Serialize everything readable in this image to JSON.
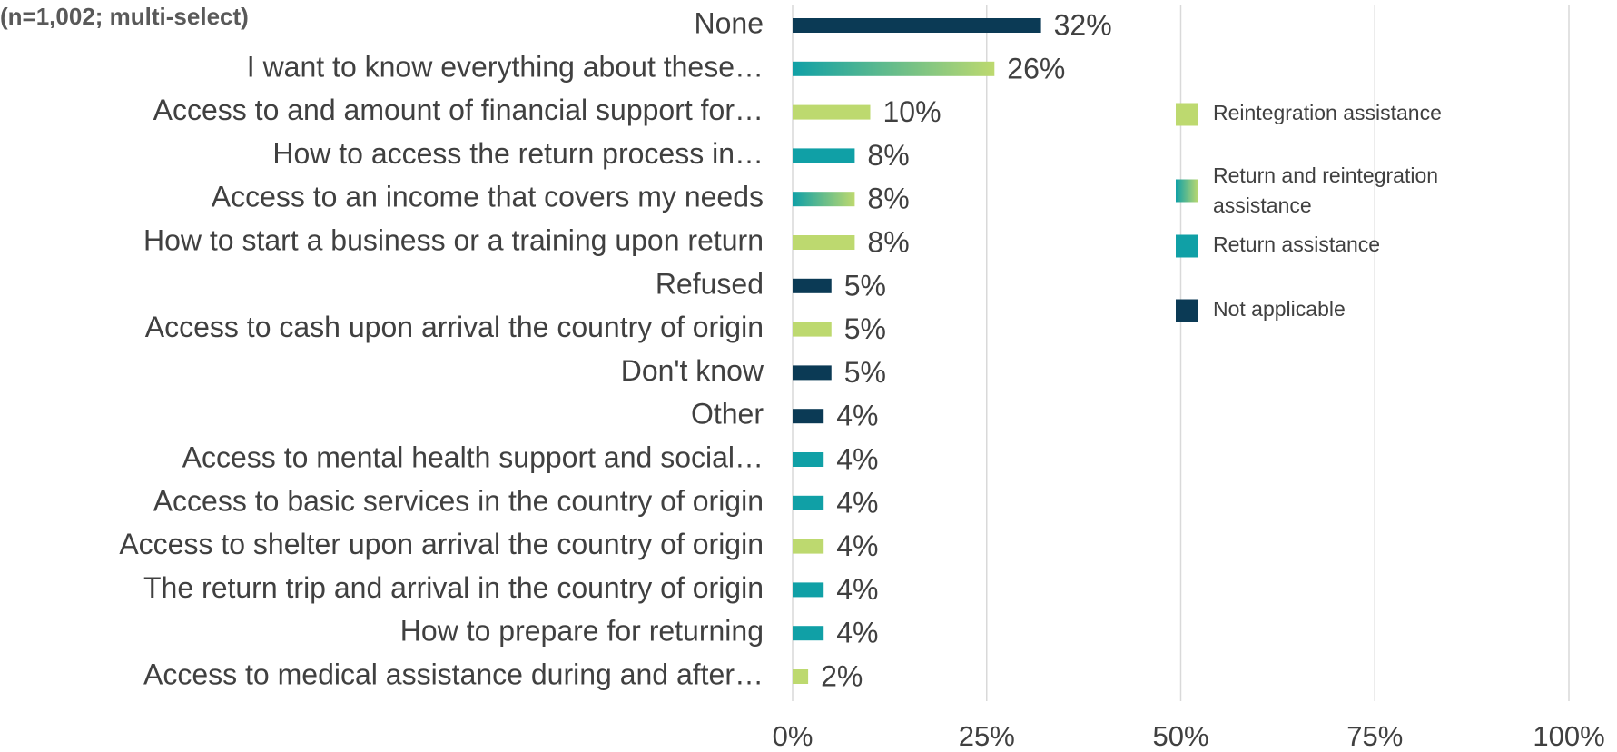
{
  "chart_data": {
    "type": "hbar",
    "subtitle": "(n=1,002; multi-select)",
    "categories": [
      "None",
      "I want to know everything about these…",
      "Access to and amount of financial support for…",
      "How to access the return process in…",
      "Access to an income that covers  my needs",
      "How to start a business or a training upon return",
      "Refused",
      "Access to cash upon arrival the country of origin",
      "Don't know",
      "Other",
      "Access to mental health support and social…",
      "Access to basic services in the country of origin",
      "Access to shelter upon arrival the country of origin",
      "The return trip and arrival in the country of origin",
      "How to prepare for returning",
      "Access to medical assistance during and after…"
    ],
    "series": [
      {
        "name": "Reintegration assistance",
        "color": "#bdd96f",
        "values": [
          null,
          null,
          10,
          null,
          null,
          8,
          null,
          5,
          null,
          null,
          null,
          null,
          4,
          null,
          null,
          2
        ],
        "value_labels": [
          null,
          null,
          "10%",
          null,
          null,
          "8%",
          null,
          "5%",
          null,
          null,
          null,
          null,
          "4%",
          null,
          null,
          "2%"
        ]
      },
      {
        "name": "Return and reintegration assistance",
        "color": "#10a0a6",
        "color_end": "#bdd96f",
        "values": [
          null,
          26,
          null,
          null,
          8,
          null,
          null,
          null,
          null,
          null,
          null,
          null,
          null,
          null,
          null,
          null
        ],
        "value_labels": [
          null,
          "26%",
          null,
          null,
          "8%",
          null,
          null,
          null,
          null,
          null,
          null,
          null,
          null,
          null,
          null,
          null
        ]
      },
      {
        "name": "Return assistance",
        "color": "#10a0a6",
        "values": [
          null,
          null,
          null,
          8,
          null,
          null,
          null,
          null,
          null,
          null,
          4,
          4,
          null,
          4,
          4,
          null
        ],
        "value_labels": [
          null,
          null,
          null,
          "8%",
          null,
          null,
          null,
          null,
          null,
          null,
          "4%",
          "4%",
          null,
          "4%",
          "4%",
          null
        ]
      },
      {
        "name": "Not applicable",
        "color": "#0b3a55",
        "values": [
          32,
          null,
          null,
          null,
          null,
          null,
          5,
          null,
          5,
          4,
          null,
          null,
          null,
          null,
          null,
          null
        ],
        "value_labels": [
          "32%",
          null,
          null,
          null,
          null,
          null,
          "5%",
          null,
          "5%",
          "4%",
          null,
          null,
          null,
          null,
          null,
          null
        ]
      }
    ],
    "xlim": [
      0,
      100
    ],
    "xticks": [
      {
        "value": 0,
        "label": "0%"
      },
      {
        "value": 25,
        "label": "25%"
      },
      {
        "value": 50,
        "label": "50%"
      },
      {
        "value": 75,
        "label": "75%"
      },
      {
        "value": 100,
        "label": "100%"
      }
    ],
    "grid": true,
    "legend": "right"
  }
}
